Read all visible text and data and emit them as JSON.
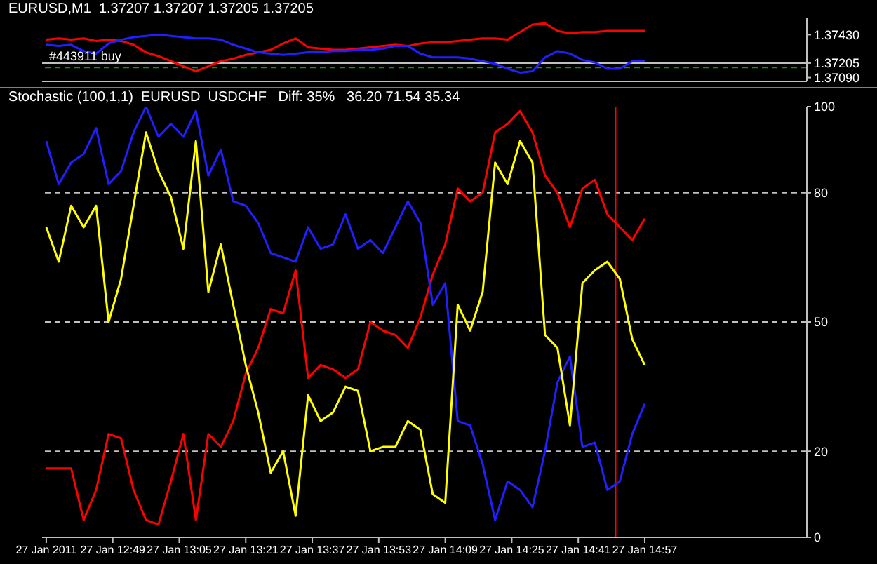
{
  "chart_data": [
    {
      "type": "line",
      "title": "EURUSD,M1  1.37207 1.37207 1.37205 1.37205",
      "x": [
        "2011-01-27T12:33",
        "2011-01-27T12:36",
        "2011-01-27T12:39",
        "2011-01-27T12:42",
        "2011-01-27T12:45",
        "2011-01-27T12:48",
        "2011-01-27T12:51",
        "2011-01-27T12:54",
        "2011-01-27T12:57",
        "2011-01-27T13:00",
        "2011-01-27T13:03",
        "2011-01-27T13:06",
        "2011-01-27T13:09",
        "2011-01-27T13:12",
        "2011-01-27T13:15",
        "2011-01-27T13:18",
        "2011-01-27T13:21",
        "2011-01-27T13:24",
        "2011-01-27T13:27",
        "2011-01-27T13:30",
        "2011-01-27T13:33",
        "2011-01-27T13:36",
        "2011-01-27T13:39",
        "2011-01-27T13:42",
        "2011-01-27T13:45",
        "2011-01-27T13:48",
        "2011-01-27T13:51",
        "2011-01-27T13:54",
        "2011-01-27T13:57",
        "2011-01-27T14:00",
        "2011-01-27T14:03",
        "2011-01-27T14:06",
        "2011-01-27T14:09",
        "2011-01-27T14:12",
        "2011-01-27T14:15",
        "2011-01-27T14:18",
        "2011-01-27T14:21",
        "2011-01-27T14:24",
        "2011-01-27T14:27",
        "2011-01-27T14:30",
        "2011-01-27T14:33",
        "2011-01-27T14:36",
        "2011-01-27T14:39",
        "2011-01-27T14:42",
        "2011-01-27T14:45",
        "2011-01-27T14:48",
        "2011-01-27T14:51",
        "2011-01-27T14:54",
        "2011-01-27T14:57"
      ],
      "series": [
        {
          "color": "#ff0000",
          "values": [
            1.3739,
            1.374,
            1.3739,
            1.374,
            1.3738,
            1.3739,
            1.3738,
            1.3735,
            1.3729,
            1.3726,
            1.3722,
            1.3718,
            1.3714,
            1.3718,
            1.3722,
            1.3724,
            1.3727,
            1.3729,
            1.3731,
            1.3736,
            1.374,
            1.3733,
            1.3732,
            1.3731,
            1.3731,
            1.3732,
            1.3733,
            1.3734,
            1.3735,
            1.3734,
            1.3736,
            1.3737,
            1.3737,
            1.3738,
            1.3739,
            1.374,
            1.374,
            1.3739,
            1.3745,
            1.3751,
            1.3752,
            1.3746,
            1.3744,
            1.3745,
            1.3745,
            1.3746,
            1.3746,
            1.3746,
            1.3746
          ]
        },
        {
          "color": "#2020ff",
          "values": [
            1.3735,
            1.3734,
            1.3735,
            1.373,
            1.3728,
            1.3736,
            1.3739,
            1.3741,
            1.3742,
            1.3743,
            1.3742,
            1.3741,
            1.374,
            1.374,
            1.3739,
            1.3735,
            1.3732,
            1.3729,
            1.3728,
            1.3727,
            1.3728,
            1.3729,
            1.3729,
            1.373,
            1.373,
            1.3731,
            1.3731,
            1.3732,
            1.3734,
            1.3734,
            1.3728,
            1.3725,
            1.3725,
            1.3725,
            1.3724,
            1.3722,
            1.372,
            1.3716,
            1.3713,
            1.3714,
            1.3725,
            1.373,
            1.3728,
            1.3723,
            1.3721,
            1.3716,
            1.3716,
            1.3722,
            1.3722
          ]
        }
      ],
      "xlim": [
        "2011-01-27T12:32",
        "2011-01-27T15:36"
      ],
      "ylim": [
        1.3706,
        1.3756
      ],
      "xticks": [
        {
          "value": "2011-01-27T12:33",
          "label": null
        },
        {
          "value": "2011-01-27T12:49",
          "label": null
        },
        {
          "value": "2011-01-27T13:05",
          "label": null
        },
        {
          "value": "2011-01-27T13:21",
          "label": null
        },
        {
          "value": "2011-01-27T13:37",
          "label": null
        },
        {
          "value": "2011-01-27T13:53",
          "label": null
        },
        {
          "value": "2011-01-27T14:09",
          "label": null
        },
        {
          "value": "2011-01-27T14:25",
          "label": null
        },
        {
          "value": "2011-01-27T14:41",
          "label": null
        },
        {
          "value": "2011-01-27T14:57",
          "label": null
        }
      ],
      "yticks": [
        {
          "value": 1.3743,
          "label": "1.37430"
        },
        {
          "value": 1.37205,
          "label": "1.37205"
        },
        {
          "value": 1.3709,
          "label": "1.37090"
        }
      ],
      "tick_labels": "y",
      "ref_lines": [
        {
          "axis": "y",
          "value": 1.37205,
          "color": "#c0c0c0",
          "line_style": "solid"
        },
        {
          "axis": "y",
          "value": 1.3717,
          "label": "#443911 buy",
          "color": "#00a000",
          "line_style": "dashed"
        }
      ]
    },
    {
      "type": "line",
      "title": "Stochastic (100,1,1)  EURUSD  USDCHF   Diff: 35%   36.20 71.54 35.34",
      "x": [
        "2011-01-27T12:33",
        "2011-01-27T12:36",
        "2011-01-27T12:39",
        "2011-01-27T12:42",
        "2011-01-27T12:45",
        "2011-01-27T12:48",
        "2011-01-27T12:51",
        "2011-01-27T12:54",
        "2011-01-27T12:57",
        "2011-01-27T13:00",
        "2011-01-27T13:03",
        "2011-01-27T13:06",
        "2011-01-27T13:09",
        "2011-01-27T13:12",
        "2011-01-27T13:15",
        "2011-01-27T13:18",
        "2011-01-27T13:21",
        "2011-01-27T13:24",
        "2011-01-27T13:27",
        "2011-01-27T13:30",
        "2011-01-27T13:33",
        "2011-01-27T13:36",
        "2011-01-27T13:39",
        "2011-01-27T13:42",
        "2011-01-27T13:45",
        "2011-01-27T13:48",
        "2011-01-27T13:51",
        "2011-01-27T13:54",
        "2011-01-27T13:57",
        "2011-01-27T14:00",
        "2011-01-27T14:03",
        "2011-01-27T14:06",
        "2011-01-27T14:09",
        "2011-01-27T14:12",
        "2011-01-27T14:15",
        "2011-01-27T14:18",
        "2011-01-27T14:21",
        "2011-01-27T14:24",
        "2011-01-27T14:27",
        "2011-01-27T14:30",
        "2011-01-27T14:33",
        "2011-01-27T14:36",
        "2011-01-27T14:39",
        "2011-01-27T14:42",
        "2011-01-27T14:45",
        "2011-01-27T14:48",
        "2011-01-27T14:51",
        "2011-01-27T14:54",
        "2011-01-27T14:57"
      ],
      "series": [
        {
          "color": "#ff0000",
          "values": [
            16,
            16,
            16,
            4,
            11,
            24,
            23,
            11,
            4,
            3,
            13,
            24,
            4,
            24,
            21,
            27,
            38,
            44,
            53,
            52,
            62,
            37,
            40,
            39,
            37,
            39,
            50,
            48,
            47,
            44,
            51,
            61,
            68,
            81,
            78,
            80,
            94,
            96,
            99,
            94,
            84,
            80,
            72,
            81,
            83,
            75,
            72,
            69,
            74
          ]
        },
        {
          "color": "#2020ff",
          "values": [
            92,
            82,
            87,
            89,
            95,
            82,
            85,
            94,
            100,
            93,
            96,
            93,
            99,
            84,
            90,
            78,
            77,
            73,
            66,
            65,
            64,
            72,
            67,
            68,
            75,
            67,
            69,
            66,
            72,
            78,
            73,
            54,
            59,
            27,
            26,
            17,
            4,
            13,
            11,
            7,
            20,
            36,
            42,
            21,
            22,
            11,
            13,
            24,
            31
          ]
        },
        {
          "color": "#ffff00",
          "values": [
            72,
            64,
            77,
            72,
            77,
            50,
            60,
            77,
            94,
            85,
            79,
            67,
            92,
            57,
            68,
            54,
            40,
            29,
            15,
            20,
            5,
            33,
            27,
            29,
            35,
            34,
            20,
            21,
            21,
            27,
            25,
            10,
            8,
            54,
            48,
            57,
            87,
            82,
            92,
            87,
            47,
            44,
            26,
            59,
            62,
            64,
            60,
            46,
            40
          ]
        }
      ],
      "xlim": [
        "2011-01-27T12:32",
        "2011-01-27T15:36"
      ],
      "ylim": [
        0,
        100
      ],
      "yticks": [
        0,
        20,
        50,
        80,
        100
      ],
      "xticks": [
        {
          "value": "2011-01-27T12:33",
          "label": "27 Jan 2011"
        },
        {
          "value": "2011-01-27T12:49",
          "label": "27 Jan 12:49"
        },
        {
          "value": "2011-01-27T13:05",
          "label": "27 Jan 13:05"
        },
        {
          "value": "2011-01-27T13:21",
          "label": "27 Jan 13:21"
        },
        {
          "value": "2011-01-27T13:37",
          "label": "27 Jan 13:37"
        },
        {
          "value": "2011-01-27T13:53",
          "label": "27 Jan 13:53"
        },
        {
          "value": "2011-01-27T14:09",
          "label": "27 Jan 14:09"
        },
        {
          "value": "2011-01-27T14:25",
          "label": "27 Jan 14:25"
        },
        {
          "value": "2011-01-27T14:41",
          "label": "27 Jan 14:41"
        },
        {
          "value": "2011-01-27T14:57",
          "label": "27 Jan 14:57"
        }
      ],
      "ref_lines": [
        {
          "axis": "y",
          "value": 20,
          "color": "#c0c0c0",
          "line_style": "dashed"
        },
        {
          "axis": "y",
          "value": 50,
          "color": "#c0c0c0",
          "line_style": "dashed"
        },
        {
          "axis": "y",
          "value": 80,
          "color": "#c0c0c0",
          "line_style": "dashed"
        },
        {
          "axis": "x",
          "value": "2011-01-27T14:50",
          "color": "#ff0000",
          "line_style": "solid"
        }
      ]
    }
  ]
}
